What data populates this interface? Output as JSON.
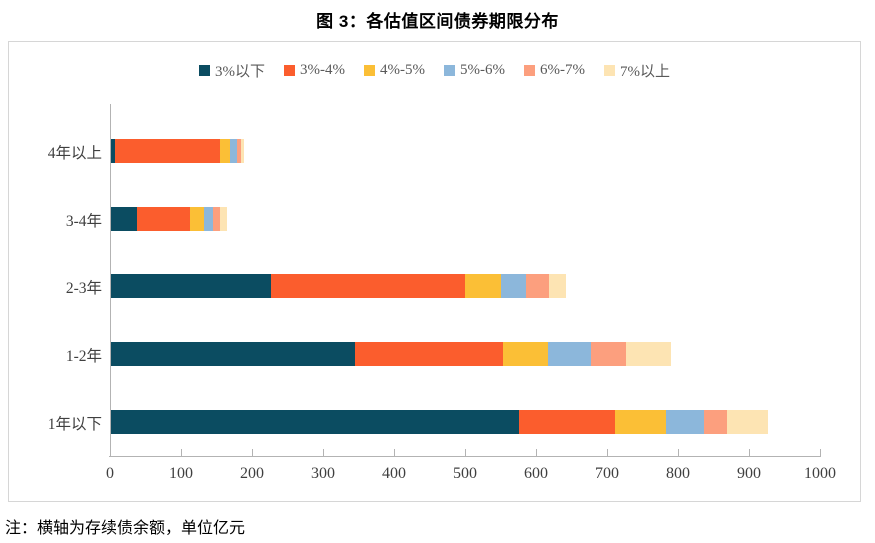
{
  "title": "图 3：各估值区间债券期限分布",
  "note": "注：横轴为存续债余额，单位亿元",
  "chart_data": {
    "type": "bar",
    "orientation": "horizontal-stacked",
    "title": "图 3：各估值区间债券期限分布",
    "categories": [
      "4年以上",
      "3-4年",
      "2-3年",
      "1-2年",
      "1年以下"
    ],
    "series": [
      {
        "name": "3%以下",
        "color": "#0b4c61",
        "values": [
          5,
          36,
          225,
          344,
          574
        ]
      },
      {
        "name": "3%-4%",
        "color": "#fb5d2d",
        "values": [
          148,
          75,
          274,
          208,
          136
        ]
      },
      {
        "name": "4%-5%",
        "color": "#fbbf36",
        "values": [
          15,
          20,
          51,
          63,
          72
        ]
      },
      {
        "name": "5%-6%",
        "color": "#8cb7db",
        "values": [
          9,
          12,
          35,
          61,
          53
        ]
      },
      {
        "name": "6%-7%",
        "color": "#fc9f7e",
        "values": [
          6,
          10,
          32,
          50,
          32
        ]
      },
      {
        "name": "7%以上",
        "color": "#fde4b3",
        "values": [
          4,
          10,
          24,
          63,
          58
        ]
      }
    ],
    "category_totals": [
      187,
      163,
      641,
      789,
      925
    ],
    "x_ticks": [
      0,
      100,
      200,
      300,
      400,
      500,
      600,
      700,
      800,
      900,
      1000
    ],
    "xlim": [
      0,
      1000
    ],
    "xlabel": "",
    "ylabel": "",
    "unit": "亿元",
    "legend_position": "top-center",
    "grid": false
  },
  "colors": {
    "axis": "#b3b3b3",
    "frame_border": "#d6d6d6",
    "tick_label": "#3f3f3f",
    "legend_text": "#595959",
    "title_text": "#000000"
  }
}
